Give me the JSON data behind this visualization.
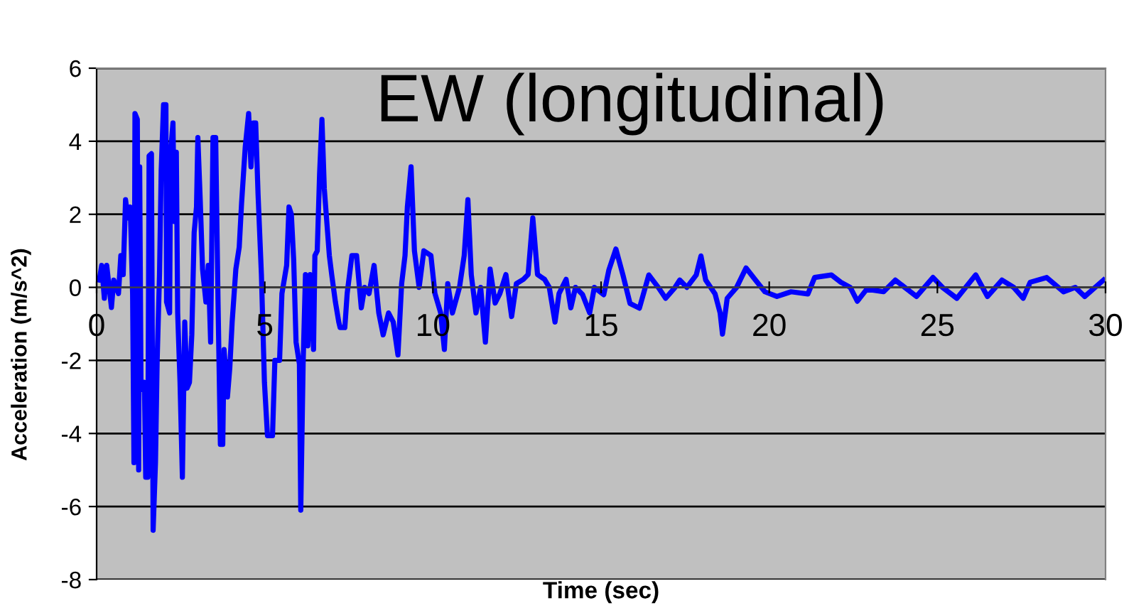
{
  "chart_data": {
    "type": "line",
    "title": "EW (longitudinal)",
    "xlabel": "Time (sec)",
    "ylabel": "Acceleration (m/s^2)",
    "x": [
      0.08,
      0.15,
      0.23,
      0.3,
      0.44,
      0.51,
      0.65,
      0.72,
      0.79,
      0.86,
      0.93,
      1.0,
      1.07,
      1.11,
      1.14,
      1.21,
      1.25,
      1.28,
      1.32,
      1.42,
      1.46,
      1.52,
      1.56,
      1.63,
      1.68,
      1.75,
      1.8,
      1.87,
      1.92,
      1.99,
      2.06,
      2.08,
      2.17,
      2.2,
      2.27,
      2.31,
      2.37,
      2.41,
      2.48,
      2.55,
      2.62,
      2.69,
      2.76,
      2.83,
      2.9,
      2.97,
      3.01,
      3.08,
      3.15,
      3.25,
      3.32,
      3.39,
      3.46,
      3.54,
      3.61,
      3.68,
      3.75,
      3.79,
      3.89,
      3.96,
      4.03,
      4.14,
      4.24,
      4.31,
      4.42,
      4.52,
      4.59,
      4.66,
      4.73,
      4.8,
      4.9,
      4.99,
      5.08,
      5.23,
      5.3,
      5.44,
      5.51,
      5.65,
      5.72,
      5.79,
      5.86,
      5.93,
      6.03,
      6.07,
      6.14,
      6.21,
      6.28,
      6.35,
      6.45,
      6.49,
      6.56,
      6.63,
      6.7,
      6.77,
      6.92,
      6.99,
      7.1,
      7.2,
      7.24,
      7.38,
      7.45,
      7.59,
      7.73,
      7.87,
      7.97,
      8.1,
      8.25,
      8.39,
      8.52,
      8.68,
      8.82,
      8.96,
      9.07,
      9.17,
      9.24,
      9.35,
      9.45,
      9.59,
      9.73,
      9.94,
      10.06,
      10.23,
      10.34,
      10.44,
      10.58,
      10.79,
      10.93,
      11.04,
      11.14,
      11.28,
      11.42,
      11.56,
      11.7,
      11.85,
      11.99,
      12.17,
      12.34,
      12.48,
      12.69,
      12.83,
      12.97,
      13.11,
      13.32,
      13.46,
      13.63,
      13.75,
      13.96,
      14.1,
      14.24,
      14.45,
      14.66,
      14.8,
      15.08,
      15.23,
      15.44,
      15.65,
      15.86,
      16.14,
      16.42,
      16.7,
      16.92,
      17.2,
      17.34,
      17.55,
      17.83,
      17.97,
      18.11,
      18.39,
      18.54,
      18.61,
      18.75,
      19.03,
      19.31,
      19.59,
      19.87,
      20.23,
      20.65,
      21.15,
      21.35,
      21.85,
      22.13,
      22.41,
      22.62,
      22.9,
      23.4,
      23.75,
      24.03,
      24.38,
      24.87,
      25.15,
      25.58,
      26.14,
      26.49,
      26.92,
      27.27,
      27.55,
      27.76,
      28.25,
      28.75,
      29.1,
      29.38,
      29.94
    ],
    "series": [
      {
        "color": "#0000ff",
        "values": [
          0.2,
          0.6,
          -0.3,
          0.6,
          -0.55,
          0.2,
          -0.17,
          0.87,
          0.35,
          2.4,
          1.9,
          2.2,
          -0.17,
          -4.8,
          4.76,
          4.6,
          -5.0,
          3.3,
          -2.8,
          -2.6,
          -5.2,
          -5.2,
          3.6,
          3.66,
          -6.65,
          -4.8,
          -2.0,
          0.35,
          3.2,
          5.0,
          5.0,
          -0.4,
          -0.7,
          3.7,
          4.5,
          1.8,
          3.7,
          -0.7,
          -2.6,
          -5.2,
          -0.95,
          -2.76,
          -2.6,
          -1.3,
          1.5,
          2.2,
          4.1,
          2.4,
          0.5,
          -0.4,
          0.6,
          -1.5,
          4.1,
          4.1,
          -0.4,
          -4.3,
          -4.3,
          -1.7,
          -3.0,
          -2.2,
          -0.95,
          0.5,
          1.1,
          2.3,
          3.85,
          4.76,
          3.3,
          4.5,
          4.5,
          2.55,
          0.35,
          -2.6,
          -4.06,
          -4.06,
          -2.0,
          -2.0,
          -0.17,
          0.6,
          2.2,
          2.0,
          0.74,
          -1.5,
          -2.1,
          -6.1,
          -2.1,
          0.35,
          -1.6,
          0.35,
          -1.7,
          0.87,
          1.0,
          3.1,
          4.6,
          2.7,
          0.87,
          0.35,
          -0.4,
          -0.95,
          -1.1,
          -1.1,
          -0.17,
          0.87,
          0.87,
          -0.56,
          0,
          -0.17,
          0.6,
          -0.7,
          -1.3,
          -0.7,
          -0.95,
          -1.85,
          0.1,
          0.87,
          2.2,
          3.3,
          1.0,
          0,
          1.0,
          0.87,
          -0.17,
          -0.7,
          -1.7,
          0.1,
          -0.7,
          0,
          0.87,
          2.4,
          0.35,
          -0.7,
          0,
          -1.5,
          0.5,
          -0.43,
          -0.17,
          0.35,
          -0.8,
          0.1,
          0.22,
          0.35,
          1.9,
          0.35,
          0.22,
          0,
          -0.95,
          -0.17,
          0.22,
          -0.56,
          0,
          -0.2,
          -0.7,
          0,
          -0.2,
          0.47,
          1.05,
          0.34,
          -0.44,
          -0.57,
          0.34,
          0,
          -0.3,
          0,
          0.2,
          0,
          0.34,
          0.86,
          0.2,
          -0.18,
          -0.7,
          -1.28,
          -0.3,
          0,
          0.53,
          0.2,
          -0.12,
          -0.25,
          -0.12,
          -0.18,
          0.27,
          0.34,
          0.14,
          0,
          -0.38,
          -0.05,
          -0.12,
          0.2,
          0,
          -0.25,
          0.27,
          0,
          -0.3,
          0.34,
          -0.25,
          0.2,
          0,
          -0.3,
          0.14,
          0.27,
          -0.12,
          0,
          -0.25,
          0.2
        ]
      }
    ],
    "xlim": [
      0,
      30
    ],
    "ylim": [
      -8,
      6
    ],
    "xticks": [
      0,
      5,
      10,
      15,
      20,
      25,
      30
    ],
    "yticks": [
      -8,
      -6,
      -4,
      -2,
      0,
      2,
      4,
      6
    ],
    "grid": "y"
  }
}
